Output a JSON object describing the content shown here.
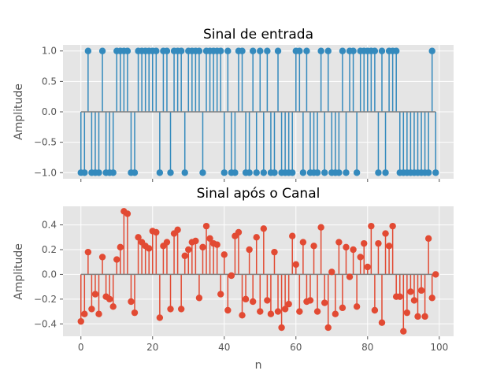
{
  "chart_data": [
    {
      "type": "stem",
      "title": "Sinal de entrada",
      "xlabel": "",
      "ylabel": "Amplitude",
      "xlim": [
        -5,
        104
      ],
      "ylim": [
        -1.1,
        1.1
      ],
      "xticks": [
        0,
        20,
        40,
        60,
        80,
        100
      ],
      "xticklabels": [
        "",
        "",
        "",
        "",
        "",
        ""
      ],
      "yticks": [
        1.0,
        0.5,
        0.0,
        -0.5,
        -1.0
      ],
      "yticklabels": [
        "1.0",
        "0.5",
        "0.0",
        "−0.5",
        "−1.0"
      ],
      "grid": true,
      "color": "#348ABD",
      "baseline_color": "#808080",
      "x": [
        0,
        1,
        2,
        3,
        4,
        5,
        6,
        7,
        8,
        9,
        10,
        11,
        12,
        13,
        14,
        15,
        16,
        17,
        18,
        19,
        20,
        21,
        22,
        23,
        24,
        25,
        26,
        27,
        28,
        29,
        30,
        31,
        32,
        33,
        34,
        35,
        36,
        37,
        38,
        39,
        40,
        41,
        42,
        43,
        44,
        45,
        46,
        47,
        48,
        49,
        50,
        51,
        52,
        53,
        54,
        55,
        56,
        57,
        58,
        59,
        60,
        61,
        62,
        63,
        64,
        65,
        66,
        67,
        68,
        69,
        70,
        71,
        72,
        73,
        74,
        75,
        76,
        77,
        78,
        79,
        80,
        81,
        82,
        83,
        84,
        85,
        86,
        87,
        88,
        89,
        90,
        91,
        92,
        93,
        94,
        95,
        96,
        97,
        98,
        99
      ],
      "y": [
        -1,
        -1,
        1,
        -1,
        -1,
        -1,
        1,
        -1,
        -1,
        -1,
        1,
        1,
        1,
        1,
        -1,
        -1,
        1,
        1,
        1,
        1,
        1,
        1,
        -1,
        1,
        1,
        -1,
        1,
        1,
        1,
        -1,
        1,
        1,
        1,
        1,
        -1,
        1,
        1,
        1,
        1,
        1,
        -1,
        1,
        -1,
        -1,
        1,
        1,
        -1,
        -1,
        1,
        -1,
        1,
        -1,
        1,
        -1,
        -1,
        1,
        -1,
        -1,
        -1,
        -1,
        1,
        1,
        -1,
        1,
        -1,
        -1,
        -1,
        1,
        -1,
        1,
        -1,
        -1,
        -1,
        1,
        -1,
        1,
        1,
        -1,
        1,
        1,
        1,
        1,
        1,
        -1,
        1,
        -1,
        1,
        1,
        1,
        -1,
        -1,
        -1,
        -1,
        -1,
        -1,
        -1,
        -1,
        -1,
        1,
        -1
      ]
    },
    {
      "type": "stem",
      "title": "Sinal após o Canal",
      "xlabel": "n",
      "ylabel": "Amplitude",
      "xlim": [
        -5,
        104
      ],
      "ylim": [
        -0.5,
        0.55
      ],
      "xticks": [
        0,
        20,
        40,
        60,
        80,
        100
      ],
      "xticklabels": [
        "0",
        "20",
        "40",
        "60",
        "80",
        "100"
      ],
      "yticks": [
        0.4,
        0.2,
        0.0,
        -0.2,
        -0.4
      ],
      "yticklabels": [
        "0.4",
        "0.2",
        "0.0",
        "−0.2",
        "−0.4"
      ],
      "grid": true,
      "color": "#E24A33",
      "baseline_color": "#808080",
      "x": [
        0,
        1,
        2,
        3,
        4,
        5,
        6,
        7,
        8,
        9,
        10,
        11,
        12,
        13,
        14,
        15,
        16,
        17,
        18,
        19,
        20,
        21,
        22,
        23,
        24,
        25,
        26,
        27,
        28,
        29,
        30,
        31,
        32,
        33,
        34,
        35,
        36,
        37,
        38,
        39,
        40,
        41,
        42,
        43,
        44,
        45,
        46,
        47,
        48,
        49,
        50,
        51,
        52,
        53,
        54,
        55,
        56,
        57,
        58,
        59,
        60,
        61,
        62,
        63,
        64,
        65,
        66,
        67,
        68,
        69,
        70,
        71,
        72,
        73,
        74,
        75,
        76,
        77,
        78,
        79,
        80,
        81,
        82,
        83,
        84,
        85,
        86,
        87,
        88,
        89,
        90,
        91,
        92,
        93,
        94,
        95,
        96,
        97,
        98,
        99
      ],
      "y": [
        -0.38,
        -0.32,
        0.18,
        -0.28,
        -0.16,
        -0.32,
        0.14,
        -0.18,
        -0.2,
        -0.26,
        0.12,
        0.22,
        0.51,
        0.49,
        -0.22,
        -0.31,
        0.3,
        0.26,
        0.23,
        0.21,
        0.35,
        0.34,
        -0.35,
        0.23,
        0.26,
        -0.28,
        0.33,
        0.36,
        -0.28,
        0.15,
        0.2,
        0.26,
        0.27,
        -0.19,
        0.22,
        0.39,
        0.29,
        0.25,
        0.24,
        -0.16,
        0.16,
        -0.29,
        -0.01,
        0.31,
        0.34,
        -0.33,
        -0.2,
        0.2,
        -0.22,
        0.3,
        -0.3,
        0.37,
        -0.21,
        -0.32,
        0.18,
        -0.3,
        -0.43,
        -0.28,
        -0.24,
        0.31,
        0.08,
        -0.3,
        0.26,
        -0.22,
        -0.21,
        0.23,
        -0.3,
        0.38,
        -0.23,
        -0.43,
        0.02,
        -0.32,
        0.26,
        -0.27,
        0.22,
        -0.02,
        0.2,
        -0.26,
        0.14,
        0.25,
        0.06,
        0.39,
        -0.29,
        0.25,
        -0.39,
        0.33,
        0.23,
        0.39,
        -0.18,
        -0.18,
        -0.46,
        -0.31,
        -0.14,
        -0.21,
        -0.34,
        -0.13,
        -0.34,
        0.29,
        -0.19,
        0.0
      ]
    }
  ]
}
